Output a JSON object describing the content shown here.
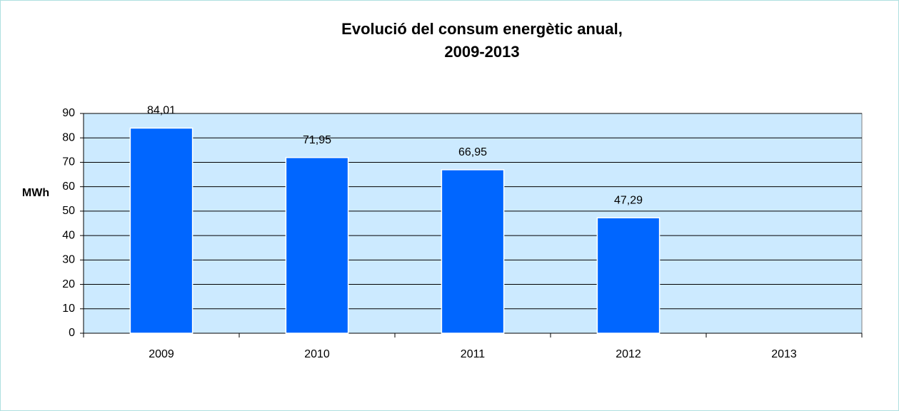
{
  "chart_data": {
    "type": "bar",
    "title": [
      "Evolució del consum energètic anual,",
      "2009-2013"
    ],
    "y_label": "MWh",
    "categories": [
      "2009",
      "2010",
      "2011",
      "2012",
      "2013"
    ],
    "values": [
      84.01,
      71.95,
      66.95,
      47.29,
      null
    ],
    "value_labels": [
      "84,01",
      "71,95",
      "66,95",
      "47,29",
      null
    ],
    "color": "#0066ff",
    "plot_background": "#cceaff",
    "ylim": [
      0,
      90
    ],
    "yticks": [
      0,
      10,
      20,
      30,
      40,
      50,
      60,
      70,
      80,
      90
    ],
    "grid": true
  }
}
